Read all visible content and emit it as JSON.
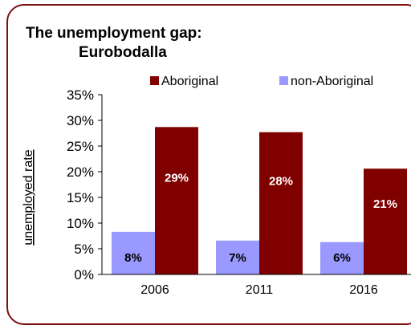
{
  "chart_data": {
    "type": "bar",
    "title_line1": "The unemployment gap:",
    "title_line2": "Eurobodalla",
    "ylabel": "unemployed rate",
    "xlabel": "",
    "categories": [
      "2006",
      "2011",
      "2016"
    ],
    "series": [
      {
        "name": "non-Aboriginal",
        "color": "#9999ff",
        "values": [
          8.3,
          6.6,
          6.3
        ],
        "labels": [
          "8%",
          "7%",
          "6%"
        ]
      },
      {
        "name": "Aboriginal",
        "color": "#800000",
        "values": [
          28.7,
          27.7,
          20.6
        ],
        "labels": [
          "29%",
          "28%",
          "21%"
        ]
      }
    ],
    "ylim": [
      0,
      35
    ],
    "yticks": [
      "0%",
      "5%",
      "10%",
      "15%",
      "20%",
      "25%",
      "30%",
      "35%"
    ],
    "grid": false,
    "legend_position": "top"
  }
}
